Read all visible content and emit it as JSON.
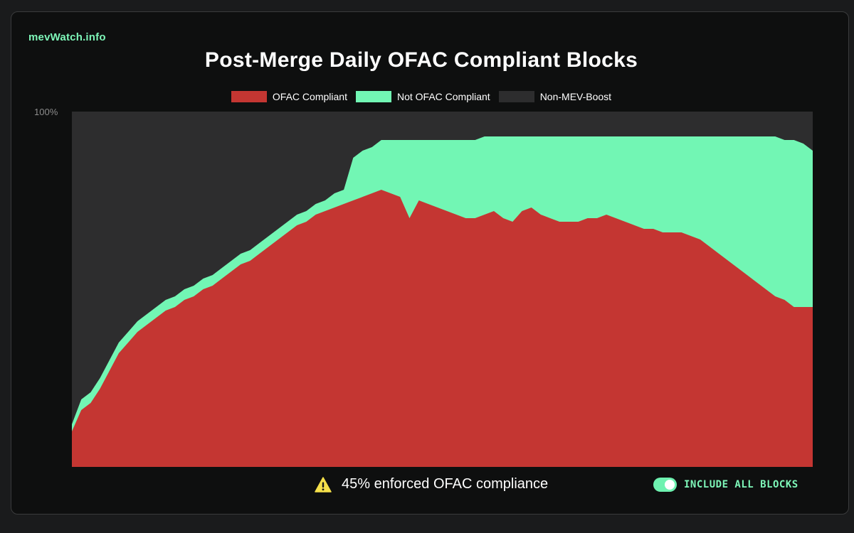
{
  "brand": "mevWatch.info",
  "colors": {
    "ofac": "#c43632",
    "not_ofac": "#72f6b4",
    "non_mev": "#2d2d2e",
    "accent": "#7ef7b9",
    "warning": "#f5e04a"
  },
  "footer": {
    "warning_icon": "warning-triangle-icon",
    "note": "45% enforced OFAC compliance",
    "toggle_label": "INCLUDE ALL BLOCKS",
    "toggle_on": true
  },
  "chart_data": {
    "type": "area",
    "stacked": true,
    "title": "Post-Merge Daily OFAC Compliant Blocks",
    "ytick_label": "100%",
    "ylim": [
      0,
      100
    ],
    "grid": false,
    "legend_position": "top-center",
    "legend": [
      {
        "label": "OFAC Compliant",
        "color": "#c43632"
      },
      {
        "label": "Not OFAC Compliant",
        "color": "#72f6b4"
      },
      {
        "label": "Non-MEV-Boost",
        "color": "#2d2d2e"
      }
    ],
    "days": 80,
    "series": [
      {
        "name": "OFAC Compliant",
        "values": [
          10,
          16,
          18,
          22,
          27,
          32,
          35,
          38,
          40,
          42,
          44,
          45,
          47,
          48,
          50,
          51,
          53,
          55,
          57,
          58,
          60,
          62,
          64,
          66,
          68,
          69,
          71,
          72,
          73,
          74,
          75,
          76,
          77,
          78,
          77,
          76,
          70,
          75,
          74,
          73,
          72,
          71,
          70,
          70,
          71,
          72,
          70,
          69,
          72,
          73,
          71,
          70,
          69,
          69,
          69,
          70,
          70,
          71,
          70,
          69,
          68,
          67,
          67,
          66,
          66,
          66,
          65,
          64,
          62,
          60,
          58,
          56,
          54,
          52,
          50,
          48,
          47,
          45,
          45,
          45
        ]
      },
      {
        "name": "Not OFAC Compliant",
        "values": [
          2,
          3,
          3,
          3,
          3,
          3,
          3,
          3,
          3,
          3,
          3,
          3,
          3,
          3,
          3,
          3,
          3,
          3,
          3,
          3,
          3,
          3,
          3,
          3,
          3,
          3,
          3,
          3,
          4,
          4,
          12,
          13,
          13,
          14,
          15,
          16,
          22,
          17,
          18,
          19,
          20,
          21,
          22,
          22,
          22,
          21,
          23,
          24,
          21,
          20,
          22,
          23,
          24,
          24,
          24,
          23,
          23,
          22,
          23,
          24,
          25,
          26,
          26,
          27,
          27,
          27,
          28,
          29,
          31,
          33,
          35,
          37,
          39,
          41,
          43,
          45,
          45,
          47,
          46,
          44
        ]
      }
    ]
  }
}
